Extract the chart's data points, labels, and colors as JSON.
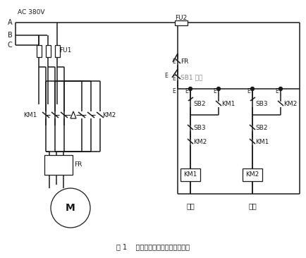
{
  "title": "图 1    异步电动机正反转控制电路图",
  "bg_color": "#ffffff",
  "line_color": "#1a1a1a",
  "highlight_color": "#888888",
  "figsize": [
    4.34,
    3.66
  ],
  "dpi": 100,
  "AC380V": "AC 380V",
  "labels": {
    "A": "A",
    "B": "B",
    "C": "C",
    "FU1": "FU1",
    "FU2": "FU2",
    "KM1_left": "KM1",
    "KM2_right": "KM2",
    "FR_power": "FR",
    "M": "M",
    "FR_ctrl": "FR",
    "SB1": "SB1 停车",
    "SB2a": "SB2",
    "KM1a": "KM1",
    "SB3a": "SB3",
    "KM2a": "KM2",
    "SB3b": "SB3",
    "SB2b": "SB2",
    "KM2b": "KM2",
    "KM1b": "KM1",
    "KM1_coil": "KM1",
    "KM2_coil": "KM2",
    "forward": "正转",
    "reverse": "反转"
  }
}
